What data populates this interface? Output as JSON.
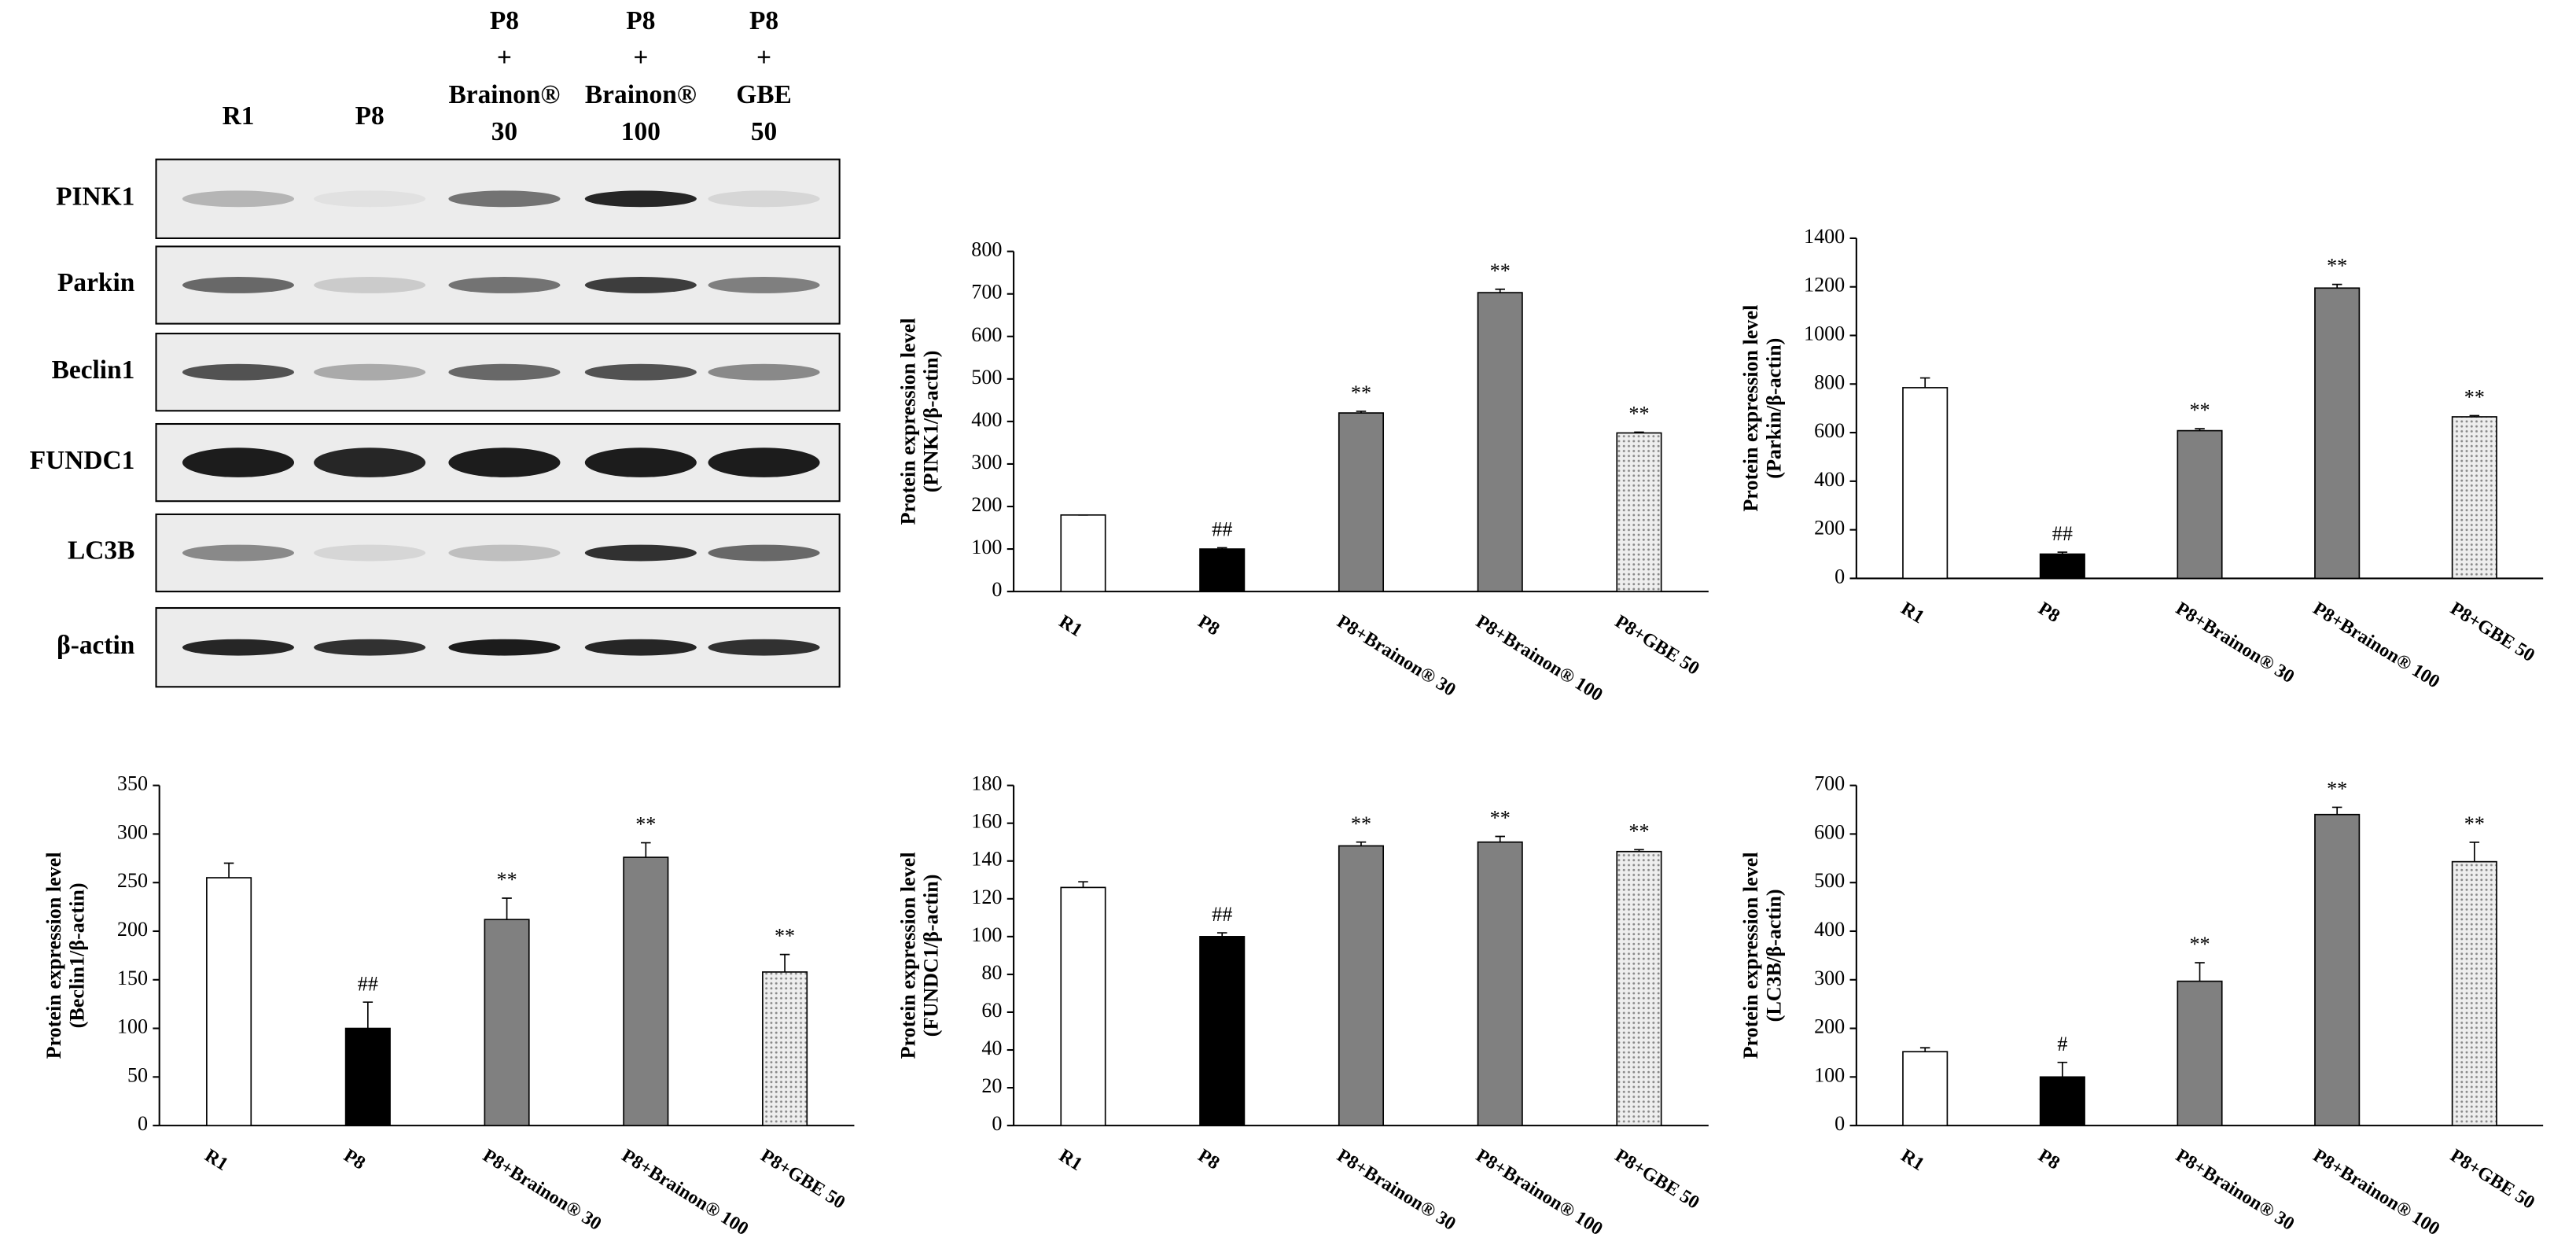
{
  "blot": {
    "lanes": [
      [
        "R1"
      ],
      [
        "P8"
      ],
      [
        "P8",
        "+",
        "Brainon®",
        "30"
      ],
      [
        "P8",
        "+",
        "Brainon®",
        "100"
      ],
      [
        "P8",
        "+",
        "GBE",
        "50"
      ]
    ],
    "proteins": [
      "PINK1",
      "Parkin",
      "Beclin1",
      "FUNDC1",
      "LC3B",
      "β-actin"
    ]
  },
  "chart_data": [
    {
      "type": "bar",
      "ylabel": [
        "Protein expression level",
        "(PINK1/β-actin)"
      ],
      "categories": [
        "R1",
        "P8",
        "P8+Brainon® 30",
        "P8+Brainon® 100",
        "P8+GBE 50"
      ],
      "values": [
        180,
        100,
        420,
        703,
        373
      ],
      "errors": [
        0,
        3,
        4,
        8,
        2
      ],
      "significance": [
        null,
        "##",
        "**",
        "**",
        "**"
      ],
      "colors": [
        "#ffffff",
        "#000000",
        "#808080",
        "#808080",
        "#e6e6e6"
      ],
      "patterns": [
        null,
        null,
        null,
        null,
        "dots"
      ],
      "ylim": [
        0,
        800
      ],
      "yticks": [
        0,
        100,
        200,
        300,
        400,
        500,
        600,
        700,
        800
      ],
      "grid": false
    },
    {
      "type": "bar",
      "ylabel": [
        "Protein expression level",
        "(Parkin/β-actin)"
      ],
      "categories": [
        "R1",
        "P8",
        "P8+Brainon® 30",
        "P8+Brainon® 100",
        "P8+GBE 50"
      ],
      "values": [
        785,
        100,
        608,
        1195,
        665
      ],
      "errors": [
        40,
        8,
        8,
        15,
        5
      ],
      "significance": [
        null,
        "##",
        "**",
        "**",
        "**"
      ],
      "colors": [
        "#ffffff",
        "#000000",
        "#808080",
        "#808080",
        "#e6e6e6"
      ],
      "patterns": [
        null,
        null,
        null,
        null,
        "dots"
      ],
      "ylim": [
        0,
        1400
      ],
      "yticks": [
        0,
        200,
        400,
        600,
        800,
        1000,
        1200,
        1400
      ],
      "grid": false
    },
    {
      "type": "bar",
      "ylabel": [
        "Protein expression level",
        "(Beclin1/β-actin)"
      ],
      "categories": [
        "R1",
        "P8",
        "P8+Brainon® 30",
        "P8+Brainon® 100",
        "P8+GBE 50"
      ],
      "values": [
        255,
        100,
        212,
        276,
        158
      ],
      "errors": [
        15,
        27,
        22,
        15,
        18
      ],
      "significance": [
        null,
        "##",
        "**",
        "**",
        "**"
      ],
      "colors": [
        "#ffffff",
        "#000000",
        "#808080",
        "#808080",
        "#e6e6e6"
      ],
      "patterns": [
        null,
        null,
        null,
        null,
        "dots"
      ],
      "ylim": [
        0,
        350
      ],
      "yticks": [
        0,
        50,
        100,
        150,
        200,
        250,
        300,
        350
      ],
      "grid": false
    },
    {
      "type": "bar",
      "ylabel": [
        "Protein expression level",
        "(FUNDC1/β-actin)"
      ],
      "categories": [
        "R1",
        "P8",
        "P8+Brainon® 30",
        "P8+Brainon® 100",
        "P8+GBE 50"
      ],
      "values": [
        126,
        100,
        148,
        150,
        145
      ],
      "errors": [
        3,
        2,
        2,
        3,
        1
      ],
      "significance": [
        null,
        "##",
        "**",
        "**",
        "**"
      ],
      "colors": [
        "#ffffff",
        "#000000",
        "#808080",
        "#808080",
        "#e6e6e6"
      ],
      "patterns": [
        null,
        null,
        null,
        null,
        "dots"
      ],
      "ylim": [
        0,
        180
      ],
      "yticks": [
        0,
        20,
        40,
        60,
        80,
        100,
        120,
        140,
        160,
        180
      ],
      "grid": false
    },
    {
      "type": "bar",
      "ylabel": [
        "Protein expression level",
        "(LC3B/β-actin)"
      ],
      "categories": [
        "R1",
        "P8",
        "P8+Brainon® 30",
        "P8+Brainon® 100",
        "P8+GBE 50"
      ],
      "values": [
        152,
        100,
        297,
        640,
        543
      ],
      "errors": [
        8,
        30,
        38,
        15,
        40
      ],
      "significance": [
        null,
        "#",
        "**",
        "**",
        "**"
      ],
      "colors": [
        "#ffffff",
        "#000000",
        "#808080",
        "#808080",
        "#e6e6e6"
      ],
      "patterns": [
        null,
        null,
        null,
        null,
        "dots"
      ],
      "ylim": [
        0,
        700
      ],
      "yticks": [
        0,
        100,
        200,
        300,
        400,
        500,
        600,
        700
      ],
      "grid": false
    }
  ]
}
